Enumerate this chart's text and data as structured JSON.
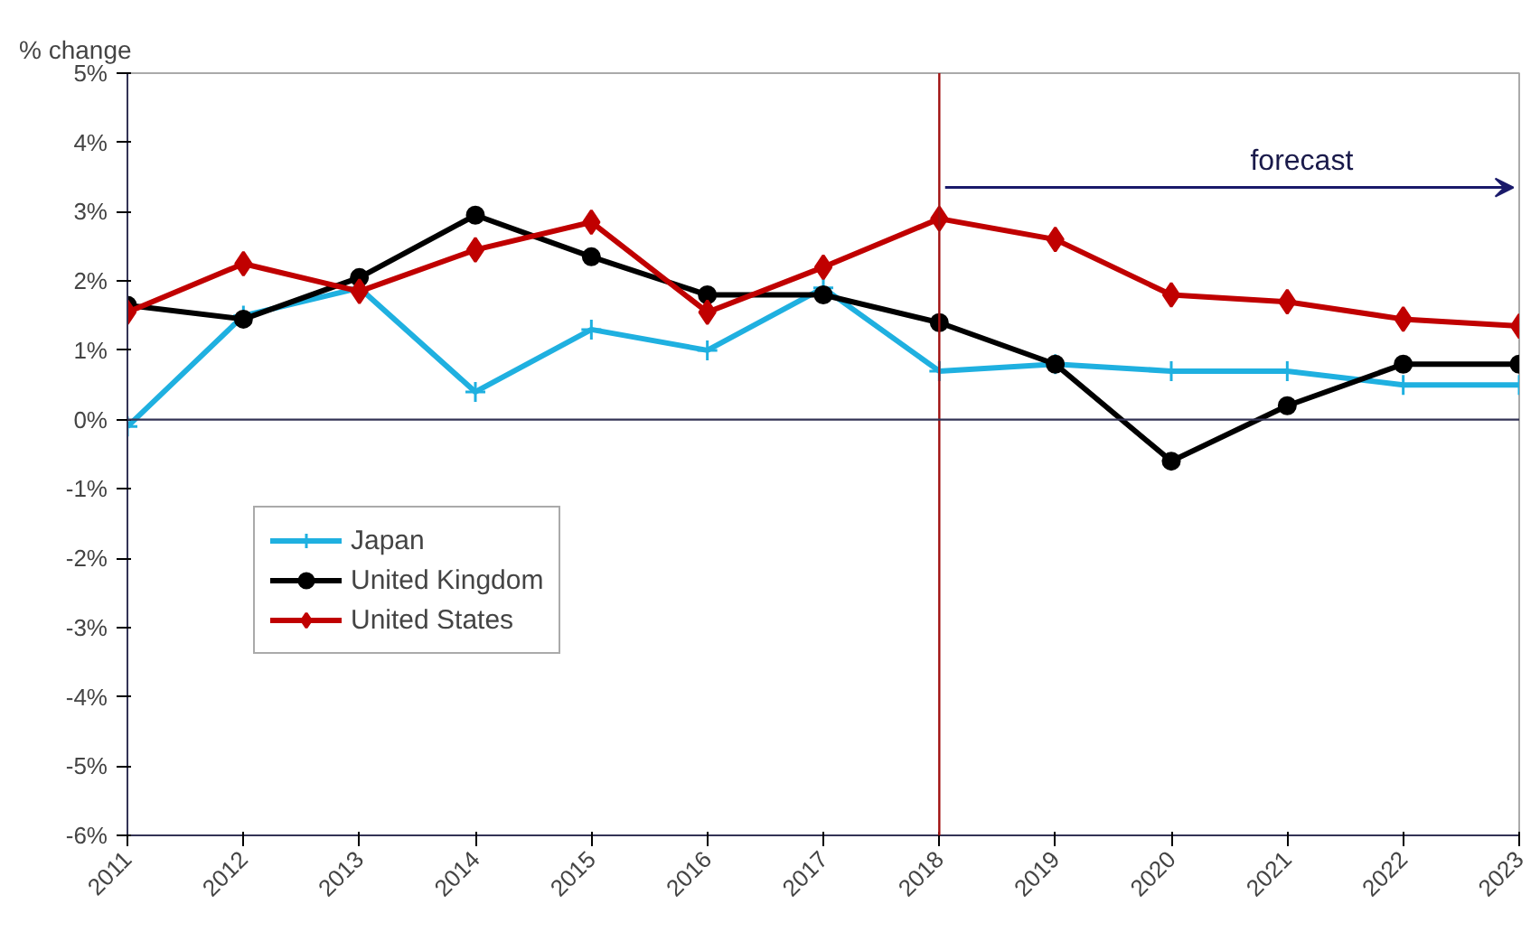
{
  "chart_data": {
    "type": "line",
    "ylabel": "% change",
    "categories": [
      "2011",
      "2012",
      "2013",
      "2014",
      "2015",
      "2016",
      "2017",
      "2018",
      "2019",
      "2020",
      "2021",
      "2022",
      "2023"
    ],
    "ylim": [
      -6,
      5
    ],
    "yticks": [
      {
        "value": -6,
        "label": "-6%"
      },
      {
        "value": -5,
        "label": "-5%"
      },
      {
        "value": -4,
        "label": "-4%"
      },
      {
        "value": -3,
        "label": "-3%"
      },
      {
        "value": -2,
        "label": "-2%"
      },
      {
        "value": -1,
        "label": "-1%"
      },
      {
        "value": 0,
        "label": "0%"
      },
      {
        "value": 1,
        "label": "1%"
      },
      {
        "value": 2,
        "label": "2%"
      },
      {
        "value": 3,
        "label": "3%"
      },
      {
        "value": 4,
        "label": "4%"
      },
      {
        "value": 5,
        "label": "5%"
      }
    ],
    "series": [
      {
        "name": "Japan",
        "color": "#1fb0e0",
        "marker": "cross",
        "values": [
          -0.1,
          1.5,
          1.9,
          0.4,
          1.3,
          1.0,
          1.9,
          0.7,
          0.8,
          0.7,
          0.7,
          0.5,
          0.5
        ]
      },
      {
        "name": "United Kingdom",
        "color": "#000000",
        "marker": "circle",
        "values": [
          1.65,
          1.45,
          2.05,
          2.95,
          2.35,
          1.8,
          1.8,
          1.4,
          0.8,
          -0.6,
          0.2,
          0.8,
          0.8
        ]
      },
      {
        "name": "United States",
        "color": "#c00000",
        "marker": "diamond",
        "values": [
          1.55,
          2.25,
          1.85,
          2.45,
          2.85,
          1.55,
          2.2,
          2.9,
          2.6,
          1.8,
          1.7,
          1.45,
          1.35
        ]
      }
    ],
    "ref_lines": [
      {
        "axis": "x",
        "value": "2018",
        "color": "#a01010"
      },
      {
        "axis": "y",
        "value": 0,
        "color": "#333355"
      }
    ],
    "annotations": [
      "forecast"
    ],
    "legend": "left",
    "grid": false,
    "line_style": "solid"
  }
}
